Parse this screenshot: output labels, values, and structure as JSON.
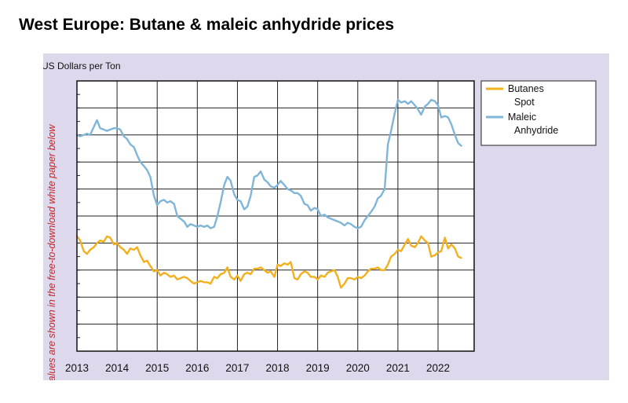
{
  "header": {
    "title": "West Europe: Butane & maleic anhydride prices"
  },
  "chart_data": {
    "type": "line",
    "title": "West Europe: Butane & maleic anhydride prices",
    "ylabel": "US Dollars per Ton",
    "xlabel": "",
    "side_note": "Values are shown in the free-to-download white paper below",
    "x_ticks": [
      "2013",
      "2014",
      "2015",
      "2016",
      "2017",
      "2018",
      "2019",
      "2020",
      "2021",
      "2022"
    ],
    "xlim": [
      2013.0,
      2022.9
    ],
    "ylim": [
      0,
      10
    ],
    "y_gridlines": 10,
    "y_values_labeled": false,
    "grid": true,
    "legend_position": "right",
    "legend": [
      {
        "lines": [
          "Butanes",
          "Spot"
        ],
        "color": "#f2b01e"
      },
      {
        "lines": [
          "Maleic",
          "Anhydride"
        ],
        "color": "#7fb6d8"
      }
    ],
    "series": [
      {
        "name": "Butanes Spot",
        "color": "#f2b01e",
        "x": [
          2013.0,
          2013.08,
          2013.17,
          2013.25,
          2013.33,
          2013.42,
          2013.5,
          2013.58,
          2013.67,
          2013.75,
          2013.83,
          2013.92,
          2014.0,
          2014.08,
          2014.17,
          2014.25,
          2014.33,
          2014.42,
          2014.5,
          2014.58,
          2014.67,
          2014.75,
          2014.83,
          2014.92,
          2015.0,
          2015.08,
          2015.17,
          2015.25,
          2015.33,
          2015.42,
          2015.5,
          2015.58,
          2015.67,
          2015.75,
          2015.83,
          2015.92,
          2016.0,
          2016.08,
          2016.17,
          2016.25,
          2016.33,
          2016.42,
          2016.5,
          2016.58,
          2016.67,
          2016.75,
          2016.83,
          2016.92,
          2017.0,
          2017.08,
          2017.17,
          2017.25,
          2017.33,
          2017.42,
          2017.5,
          2017.58,
          2017.67,
          2017.75,
          2017.83,
          2017.92,
          2018.0,
          2018.08,
          2018.17,
          2018.25,
          2018.33,
          2018.42,
          2018.5,
          2018.58,
          2018.67,
          2018.75,
          2018.83,
          2018.92,
          2019.0,
          2019.08,
          2019.17,
          2019.25,
          2019.33,
          2019.42,
          2019.5,
          2019.58,
          2019.67,
          2019.75,
          2019.83,
          2019.92,
          2020.0,
          2020.08,
          2020.17,
          2020.25,
          2020.33,
          2020.42,
          2020.5,
          2020.58,
          2020.67,
          2020.75,
          2020.83,
          2020.92,
          2021.0,
          2021.08,
          2021.17,
          2021.25,
          2021.33,
          2021.42,
          2021.5,
          2021.58,
          2021.67,
          2021.75,
          2021.83,
          2021.92,
          2022.0,
          2022.08,
          2022.17,
          2022.25,
          2022.33,
          2022.42,
          2022.5,
          2022.58
        ],
        "y": [
          4.25,
          4.1,
          3.7,
          3.6,
          3.75,
          3.85,
          4.0,
          4.1,
          4.05,
          4.25,
          4.2,
          3.95,
          4.0,
          3.85,
          3.75,
          3.6,
          3.8,
          3.75,
          3.85,
          3.55,
          3.3,
          3.35,
          3.15,
          2.95,
          3.0,
          2.8,
          2.9,
          2.85,
          2.75,
          2.8,
          2.65,
          2.7,
          2.75,
          2.7,
          2.6,
          2.5,
          2.55,
          2.6,
          2.55,
          2.55,
          2.5,
          2.75,
          2.7,
          2.85,
          2.9,
          3.1,
          2.75,
          2.65,
          2.8,
          2.6,
          2.85,
          2.9,
          2.85,
          3.05,
          3.05,
          3.1,
          3.0,
          2.9,
          2.95,
          2.75,
          3.2,
          3.15,
          3.25,
          3.2,
          3.3,
          2.7,
          2.65,
          2.85,
          2.95,
          2.9,
          2.75,
          2.75,
          2.65,
          2.8,
          2.75,
          2.9,
          2.95,
          3.0,
          2.75,
          2.35,
          2.5,
          2.7,
          2.7,
          2.65,
          2.75,
          2.7,
          2.8,
          2.95,
          3.05,
          3.05,
          3.1,
          3.0,
          3.0,
          3.2,
          3.5,
          3.6,
          3.75,
          3.7,
          3.95,
          4.15,
          3.9,
          3.85,
          4.0,
          4.25,
          4.1,
          4.0,
          3.5,
          3.55,
          3.65,
          3.7,
          4.2,
          3.8,
          3.95,
          3.8,
          3.5,
          3.45
        ]
      },
      {
        "name": "Maleic Anhydride",
        "color": "#7fb6d8",
        "x": [
          2013.0,
          2013.08,
          2013.17,
          2013.25,
          2013.33,
          2013.42,
          2013.5,
          2013.58,
          2013.67,
          2013.75,
          2013.83,
          2013.92,
          2014.0,
          2014.08,
          2014.17,
          2014.25,
          2014.33,
          2014.42,
          2014.5,
          2014.58,
          2014.67,
          2014.75,
          2014.83,
          2014.92,
          2015.0,
          2015.08,
          2015.17,
          2015.25,
          2015.33,
          2015.42,
          2015.5,
          2015.58,
          2015.67,
          2015.75,
          2015.83,
          2015.92,
          2016.0,
          2016.08,
          2016.17,
          2016.25,
          2016.33,
          2016.42,
          2016.5,
          2016.58,
          2016.67,
          2016.75,
          2016.83,
          2016.92,
          2017.0,
          2017.08,
          2017.17,
          2017.25,
          2017.33,
          2017.42,
          2017.5,
          2017.58,
          2017.67,
          2017.75,
          2017.83,
          2017.92,
          2018.0,
          2018.08,
          2018.17,
          2018.25,
          2018.33,
          2018.42,
          2018.5,
          2018.58,
          2018.67,
          2018.75,
          2018.83,
          2018.92,
          2019.0,
          2019.08,
          2019.17,
          2019.25,
          2019.33,
          2019.42,
          2019.5,
          2019.58,
          2019.67,
          2019.75,
          2019.83,
          2019.92,
          2020.0,
          2020.08,
          2020.17,
          2020.25,
          2020.33,
          2020.42,
          2020.5,
          2020.58,
          2020.67,
          2020.75,
          2020.83,
          2020.92,
          2021.0,
          2021.08,
          2021.17,
          2021.25,
          2021.33,
          2021.42,
          2021.5,
          2021.58,
          2021.67,
          2021.75,
          2021.83,
          2021.92,
          2022.0,
          2022.08,
          2022.17,
          2022.25,
          2022.33,
          2022.42,
          2022.5,
          2022.58
        ],
        "y": [
          8.0,
          7.95,
          8.0,
          8.05,
          8.0,
          8.3,
          8.55,
          8.25,
          8.2,
          8.15,
          8.2,
          8.25,
          8.25,
          8.2,
          7.95,
          7.85,
          7.65,
          7.55,
          7.25,
          7.0,
          6.85,
          6.7,
          6.45,
          5.75,
          5.4,
          5.55,
          5.6,
          5.5,
          5.55,
          5.45,
          5.0,
          4.9,
          4.8,
          4.6,
          4.7,
          4.65,
          4.6,
          4.65,
          4.6,
          4.65,
          4.55,
          4.6,
          5.0,
          5.5,
          6.15,
          6.45,
          6.3,
          5.8,
          5.6,
          5.55,
          5.25,
          5.35,
          5.75,
          6.45,
          6.5,
          6.65,
          6.35,
          6.25,
          6.1,
          6.05,
          6.15,
          6.3,
          6.15,
          6.0,
          5.95,
          5.85,
          5.85,
          5.75,
          5.45,
          5.4,
          5.2,
          5.3,
          5.25,
          5.0,
          5.05,
          4.95,
          4.9,
          4.85,
          4.8,
          4.75,
          4.65,
          4.75,
          4.7,
          4.6,
          4.55,
          4.6,
          4.85,
          5.0,
          5.15,
          5.35,
          5.65,
          5.75,
          6.0,
          7.65,
          8.15,
          8.8,
          9.3,
          9.2,
          9.25,
          9.15,
          9.25,
          9.1,
          8.95,
          8.75,
          9.05,
          9.15,
          9.3,
          9.25,
          9.1,
          8.65,
          8.7,
          8.65,
          8.4,
          8.0,
          7.7,
          7.6
        ]
      }
    ]
  }
}
